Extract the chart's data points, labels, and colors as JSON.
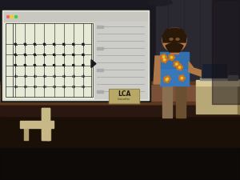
{
  "fig_width": 3.0,
  "fig_height": 2.25,
  "dpi": 100,
  "bg_dark": "#0d0d10",
  "ceiling_color": "#111115",
  "back_wall_color": "#1a1820",
  "right_wall_color": "#2a2830",
  "wood_panel_color": "#7a5038",
  "wood_panel_dark": "#5a3820",
  "floor_color": "#1a1008",
  "floor_mid": "#2a1810",
  "screen_outer": "#dcdcd0",
  "screen_bg": "#e8ead8",
  "screen_toolbar": "#c8c8c0",
  "screen_sidebar": "#ccccc8",
  "screen_content_bg": "#dcdec8",
  "circuit_color": "#1a1a1a",
  "person_skin": "#b07848",
  "person_hair": "#2a1808",
  "person_shirt_blue": "#3878b8",
  "person_shirt_dark": "#2860a0",
  "shirt_flower1": "#e89020",
  "shirt_flower2": "#d07010",
  "person_pants": "#8a7050",
  "person_pants_dark": "#6a5030",
  "podium_top": "#d8c898",
  "podium_side": "#b8a878",
  "podium_dark": "#8a7848",
  "podium_shadow": "#181010",
  "laptop_base": "#888880",
  "laptop_screen": "#303030",
  "chair_body": "#c8b888",
  "chair_leg": "#b0a070",
  "lca_bg": "#b8a868",
  "lca_border": "#8a7840",
  "lca_text": "#1a1a10",
  "light_spot": "#ffffff",
  "screen_frame_gray": "#888880",
  "right_panel_color": "#3a3838"
}
